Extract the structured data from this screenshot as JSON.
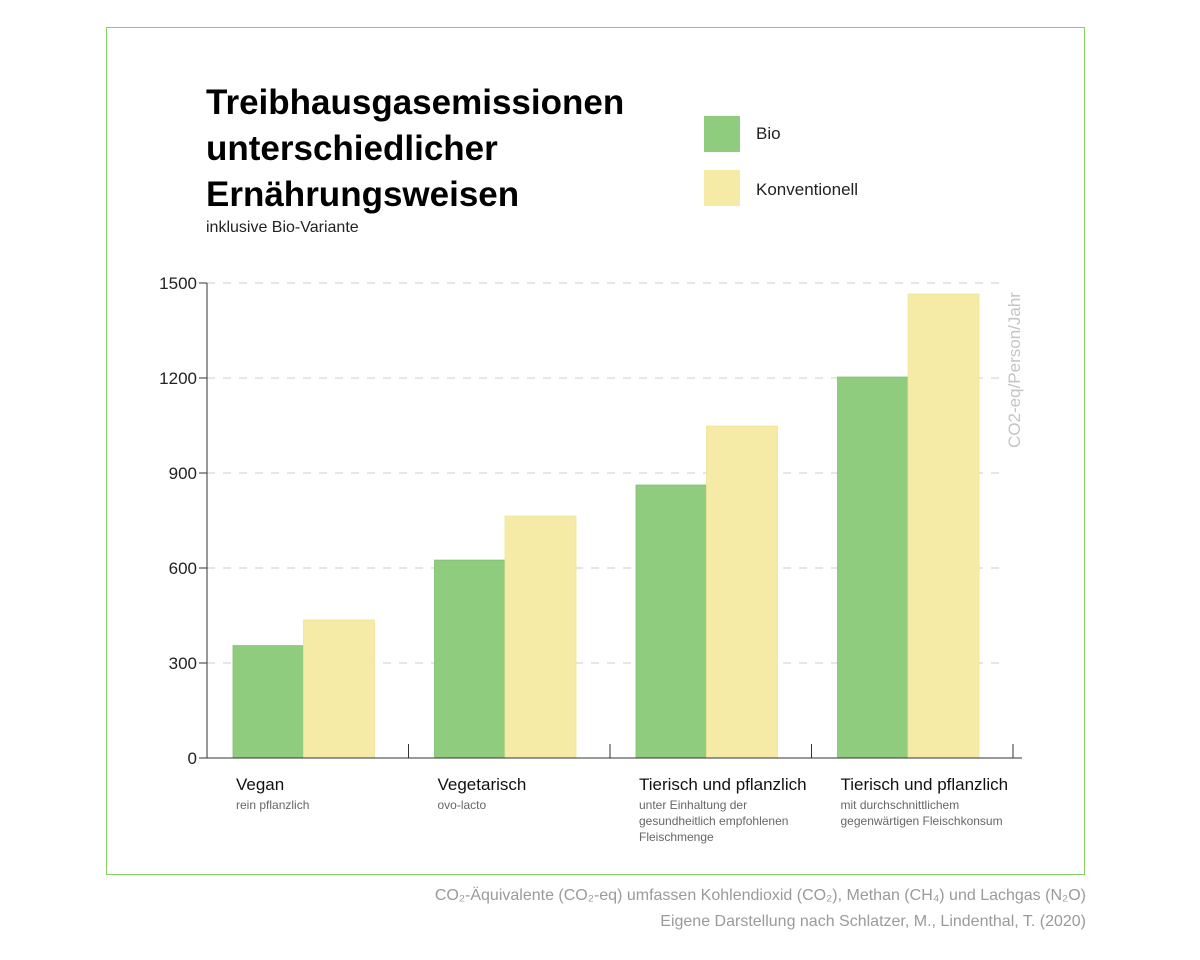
{
  "chart_data": {
    "type": "bar",
    "title": "Treibhausgasemissionen unterschiedlicher Ernährungsweisen",
    "subtitle": "inklusive Bio-Variante",
    "ylabel": "CO2-eq/Person/Jahr",
    "ylim": [
      0,
      1500
    ],
    "yticks": [
      "0",
      "300",
      "600",
      "900",
      "1200",
      "1500"
    ],
    "grid": true,
    "legend_placement": "top-right",
    "categories": [
      {
        "label": "Vegan",
        "sub": "rein pflanzlich"
      },
      {
        "label": "Vegetarisch",
        "sub": "ovo-lacto"
      },
      {
        "label": "Tierisch und pflanzlich",
        "sub": "unter Einhaltung der gesundheitlich empfohlenen Fleischmenge"
      },
      {
        "label": "Tierisch und pflanzlich",
        "sub": "mit durchschnittlichem gegenwärtigen Fleischkonsum"
      }
    ],
    "series": [
      {
        "name": "Bio",
        "color": "#8fcc7e",
        "values": [
          355,
          625,
          862,
          1203
        ]
      },
      {
        "name": "Konventionell",
        "color": "#f5eba6",
        "values": [
          436,
          764,
          1048,
          1465
        ]
      }
    ]
  },
  "footnotes": [
    "CO₂-Äquivalente (CO₂-eq) umfassen Kohlendioxid (CO₂), Methan (CH₄) und Lachgas (N₂O)",
    "Eigene Darstellung nach Schlatzer, M., Lindenthal, T. (2020)"
  ],
  "colors": {
    "frame": "#86d063",
    "axis": "#333333",
    "grid": "#cccccc"
  }
}
